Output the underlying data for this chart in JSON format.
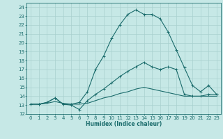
{
  "xlabel": "Humidex (Indice chaleur)",
  "bg_color": "#c6e8e6",
  "line_color": "#1a6b6b",
  "grid_color": "#a8d0ce",
  "xlim": [
    -0.5,
    23.5
  ],
  "ylim": [
    12,
    24.5
  ],
  "xticks": [
    0,
    1,
    2,
    3,
    4,
    5,
    6,
    7,
    8,
    9,
    10,
    11,
    12,
    13,
    14,
    15,
    16,
    17,
    18,
    19,
    20,
    21,
    22,
    23
  ],
  "yticks": [
    12,
    13,
    14,
    15,
    16,
    17,
    18,
    19,
    20,
    21,
    22,
    23,
    24
  ],
  "line1_x": [
    0,
    1,
    2,
    3,
    4,
    5,
    6,
    7,
    8,
    9,
    10,
    11,
    12,
    13,
    14,
    15,
    16,
    17,
    18,
    19,
    20,
    21,
    22,
    23
  ],
  "line1_y": [
    13.1,
    13.1,
    13.3,
    13.8,
    13.1,
    13.1,
    13.3,
    14.5,
    17.0,
    18.5,
    20.5,
    22.0,
    23.2,
    23.7,
    23.2,
    23.2,
    22.7,
    21.2,
    19.2,
    17.2,
    15.2,
    14.5,
    15.2,
    14.2
  ],
  "line2_x": [
    0,
    1,
    2,
    3,
    4,
    5,
    6,
    7,
    8,
    9,
    10,
    11,
    12,
    13,
    14,
    15,
    16,
    17,
    18,
    19,
    20,
    21,
    22,
    23
  ],
  "line2_y": [
    13.1,
    13.1,
    13.3,
    13.8,
    13.1,
    13.0,
    12.5,
    13.5,
    14.2,
    14.8,
    15.5,
    16.2,
    16.8,
    17.3,
    17.8,
    17.3,
    17.0,
    17.3,
    17.0,
    14.2,
    14.0,
    14.0,
    14.2,
    14.2
  ],
  "line3_x": [
    0,
    1,
    2,
    3,
    4,
    5,
    6,
    7,
    8,
    9,
    10,
    11,
    12,
    13,
    14,
    15,
    16,
    17,
    18,
    19,
    20,
    21,
    22,
    23
  ],
  "line3_y": [
    13.1,
    13.1,
    13.2,
    13.4,
    13.2,
    13.1,
    13.1,
    13.2,
    13.5,
    13.8,
    14.0,
    14.3,
    14.5,
    14.8,
    15.0,
    14.8,
    14.6,
    14.4,
    14.2,
    14.0,
    14.0,
    14.0,
    14.0,
    14.0
  ]
}
